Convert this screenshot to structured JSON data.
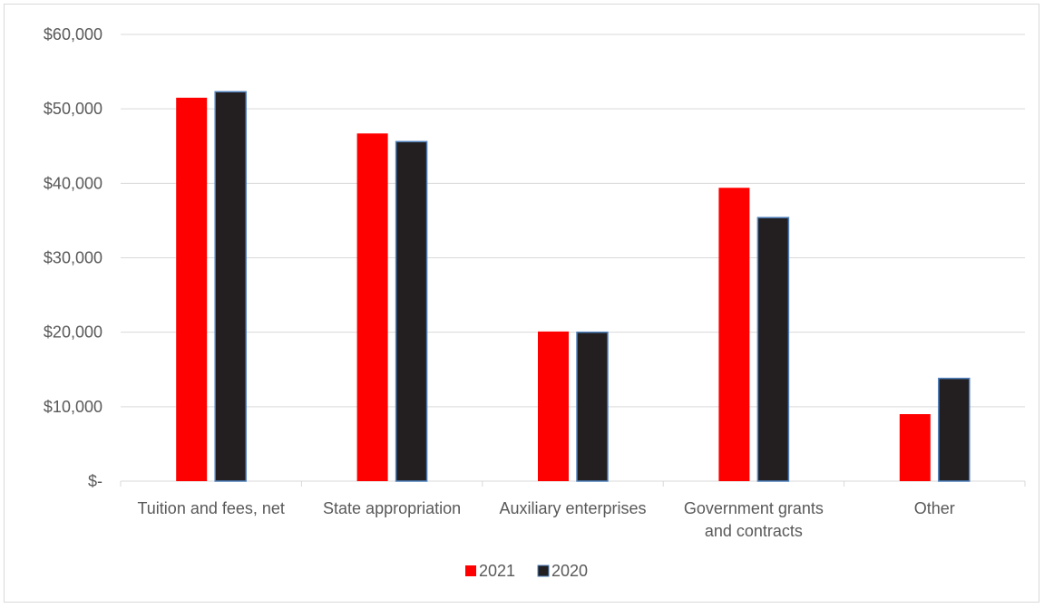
{
  "chart_data": {
    "type": "bar",
    "categories": [
      "Tuition and fees, net",
      "State appropriation",
      "Auxiliary enterprises",
      "Government grants and contracts",
      "Other"
    ],
    "category_lines": [
      [
        "Tuition and fees, net"
      ],
      [
        "State appropriation"
      ],
      [
        "Auxiliary enterprises"
      ],
      [
        "Government grants",
        "and contracts"
      ],
      [
        "Other"
      ]
    ],
    "series": [
      {
        "name": "2021",
        "values": [
          51500,
          46700,
          20100,
          39400,
          9000
        ]
      },
      {
        "name": "2020",
        "values": [
          52300,
          45600,
          20000,
          35400,
          13800
        ]
      }
    ],
    "ylim": [
      0,
      60000
    ],
    "y_ticks": [
      0,
      10000,
      20000,
      30000,
      40000,
      50000,
      60000
    ],
    "y_tick_labels": [
      "$-",
      "$10,000",
      "$20,000",
      "$30,000",
      "$40,000",
      "$50,000",
      "$60,000"
    ],
    "grid": true,
    "legend_position": "bottom",
    "colors": {
      "2021": "#ff0000",
      "2020": "#231f20",
      "2020_outline": "#4f81bd",
      "grid": "#d9d9d9"
    }
  }
}
